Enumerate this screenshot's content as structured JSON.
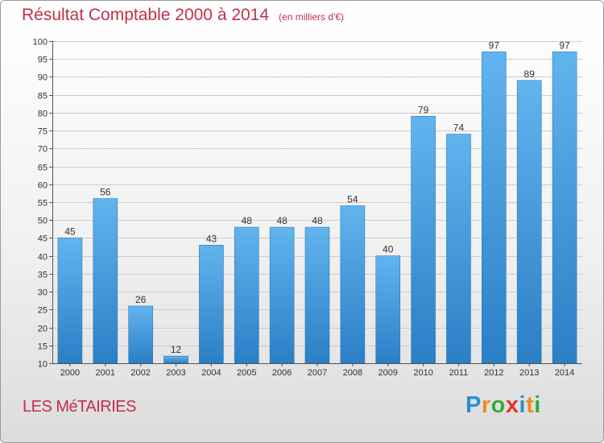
{
  "header": {
    "title": "Résultat Comptable 2000 à 2014",
    "unit": "(en milliers d'€)"
  },
  "commune": "LES MéTAIRIES",
  "logo": {
    "text": "Proxiti",
    "letters": [
      {
        "ch": "P",
        "color": "#2a8fd4"
      },
      {
        "ch": "r",
        "color": "#f08a1c"
      },
      {
        "ch": "o",
        "color": "#3aab3a"
      },
      {
        "ch": "x",
        "color": "#e8342c"
      },
      {
        "ch": "i",
        "color": "#2a8fd4"
      },
      {
        "ch": "t",
        "color": "#f08a1c"
      },
      {
        "ch": "i",
        "color": "#3aab3a"
      }
    ]
  },
  "colors": {
    "title": "#c0304a",
    "bar_light": "#62b4ee",
    "bar_dark": "#2a7fc6",
    "grid": "#cccccc"
  },
  "chart_data": {
    "type": "bar",
    "title": "Résultat Comptable 2000 à 2014",
    "subtitle": "(en milliers d'€)",
    "xlabel": "",
    "ylabel": "",
    "categories": [
      "2000",
      "2001",
      "2002",
      "2003",
      "2004",
      "2005",
      "2006",
      "2007",
      "2008",
      "2009",
      "2010",
      "2011",
      "2012",
      "2013",
      "2014"
    ],
    "values": [
      45,
      56,
      26,
      12,
      43,
      48,
      48,
      48,
      54,
      40,
      79,
      74,
      97,
      89,
      97
    ],
    "ylim": [
      10,
      100
    ],
    "yticks": [
      10,
      15,
      20,
      25,
      30,
      35,
      40,
      45,
      50,
      55,
      60,
      65,
      70,
      75,
      80,
      85,
      90,
      95,
      100
    ],
    "grid": true,
    "data_labels": true
  }
}
